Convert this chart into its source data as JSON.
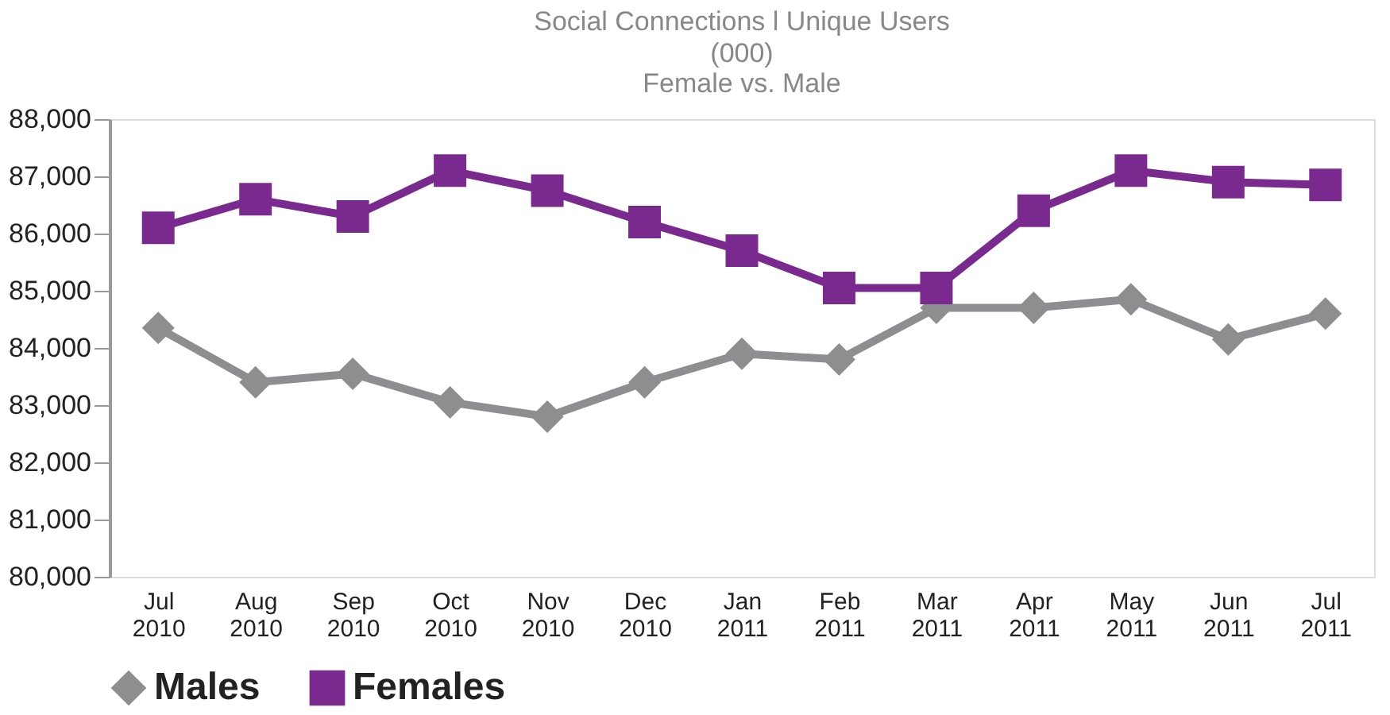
{
  "chart_data": {
    "type": "line",
    "title": "Social Connections l Unique Users",
    "subtitle": "(000)\nFemale vs. Male",
    "categories": [
      "Jul 2010",
      "Aug 2010",
      "Sep 2010",
      "Oct 2010",
      "Nov 2010",
      "Dec 2010",
      "Jan 2011",
      "Feb 2011",
      "Mar 2011",
      "Apr 2011",
      "May 2011",
      "Jun 2011",
      "Jul 2011"
    ],
    "series": [
      {
        "name": "Males",
        "color": "#8e8e91",
        "marker": "diamond",
        "values": [
          84350,
          83400,
          83550,
          83050,
          82800,
          83400,
          83900,
          83800,
          84700,
          84700,
          84850,
          84150,
          84600
        ]
      },
      {
        "name": "Females",
        "color": "#7a2a8f",
        "marker": "square",
        "values": [
          86100,
          86600,
          86300,
          87100,
          86750,
          86200,
          85700,
          85050,
          85050,
          86400,
          87100,
          86900,
          86850
        ]
      }
    ],
    "ylim": [
      80000,
      88000
    ],
    "yticks": [
      {
        "value": 80000,
        "label": "80,000"
      },
      {
        "value": 81000,
        "label": "81,000"
      },
      {
        "value": 82000,
        "label": "82,000"
      },
      {
        "value": 83000,
        "label": "83,000"
      },
      {
        "value": 84000,
        "label": "84,000"
      },
      {
        "value": 85000,
        "label": "85,000"
      },
      {
        "value": 86000,
        "label": "86,000"
      },
      {
        "value": 87000,
        "label": "87,000"
      },
      {
        "value": 88000,
        "label": "88,000"
      }
    ],
    "grid": false,
    "legend": "bottom",
    "line_style": "solid"
  }
}
